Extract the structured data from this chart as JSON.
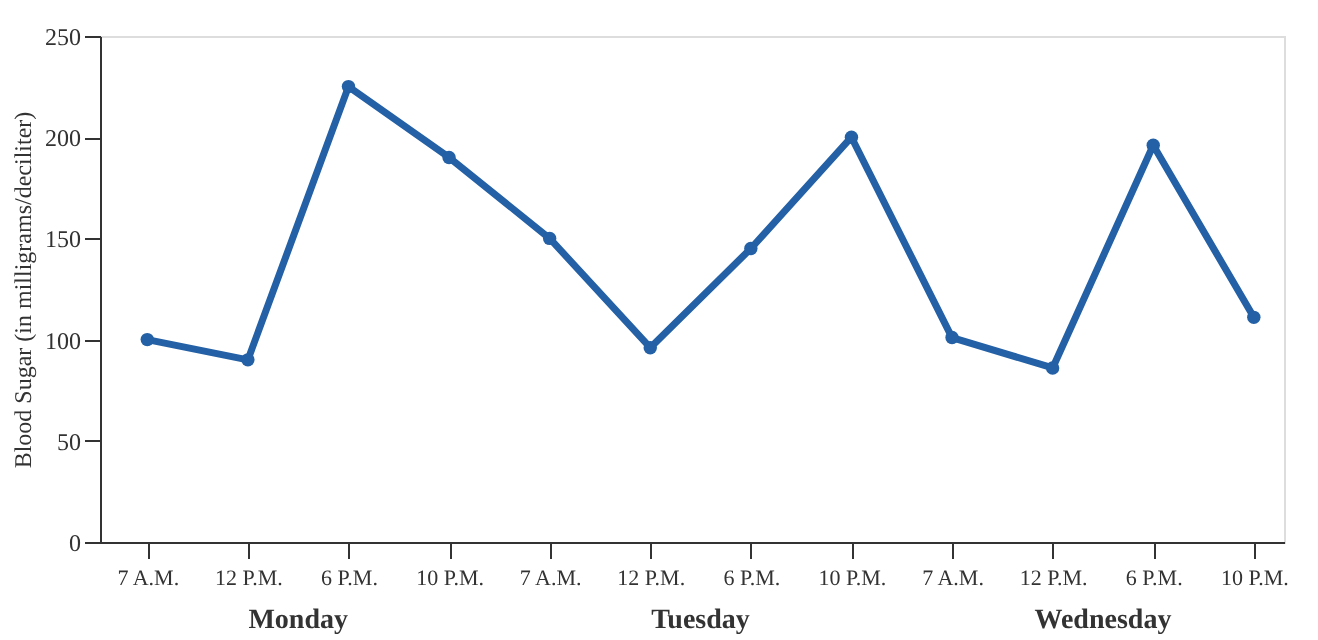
{
  "chart_data": {
    "type": "line",
    "ylabel": "Blood Sugar (in milligrams/deciliter)",
    "categories": [
      "7 A.M.",
      "12 P.M.",
      "6 P.M.",
      "10 P.M.",
      "7 A.M.",
      "12 P.M.",
      "6 P.M.",
      "10 P.M.",
      "7 A.M.",
      "12 P.M.",
      "6 P.M.",
      "10 P.M."
    ],
    "series": [
      {
        "color": "#2360a5",
        "values": [
          100,
          90,
          225,
          190,
          150,
          96,
          145,
          200,
          101,
          86,
          196,
          111
        ]
      }
    ],
    "ylim": [
      0,
      250
    ],
    "yticks": [
      0,
      50,
      100,
      150,
      200,
      250
    ],
    "grid": false,
    "marker": "circle",
    "line_style": "solid",
    "annotations": [
      "Monday",
      "Tuesday",
      "Wednesday"
    ]
  }
}
